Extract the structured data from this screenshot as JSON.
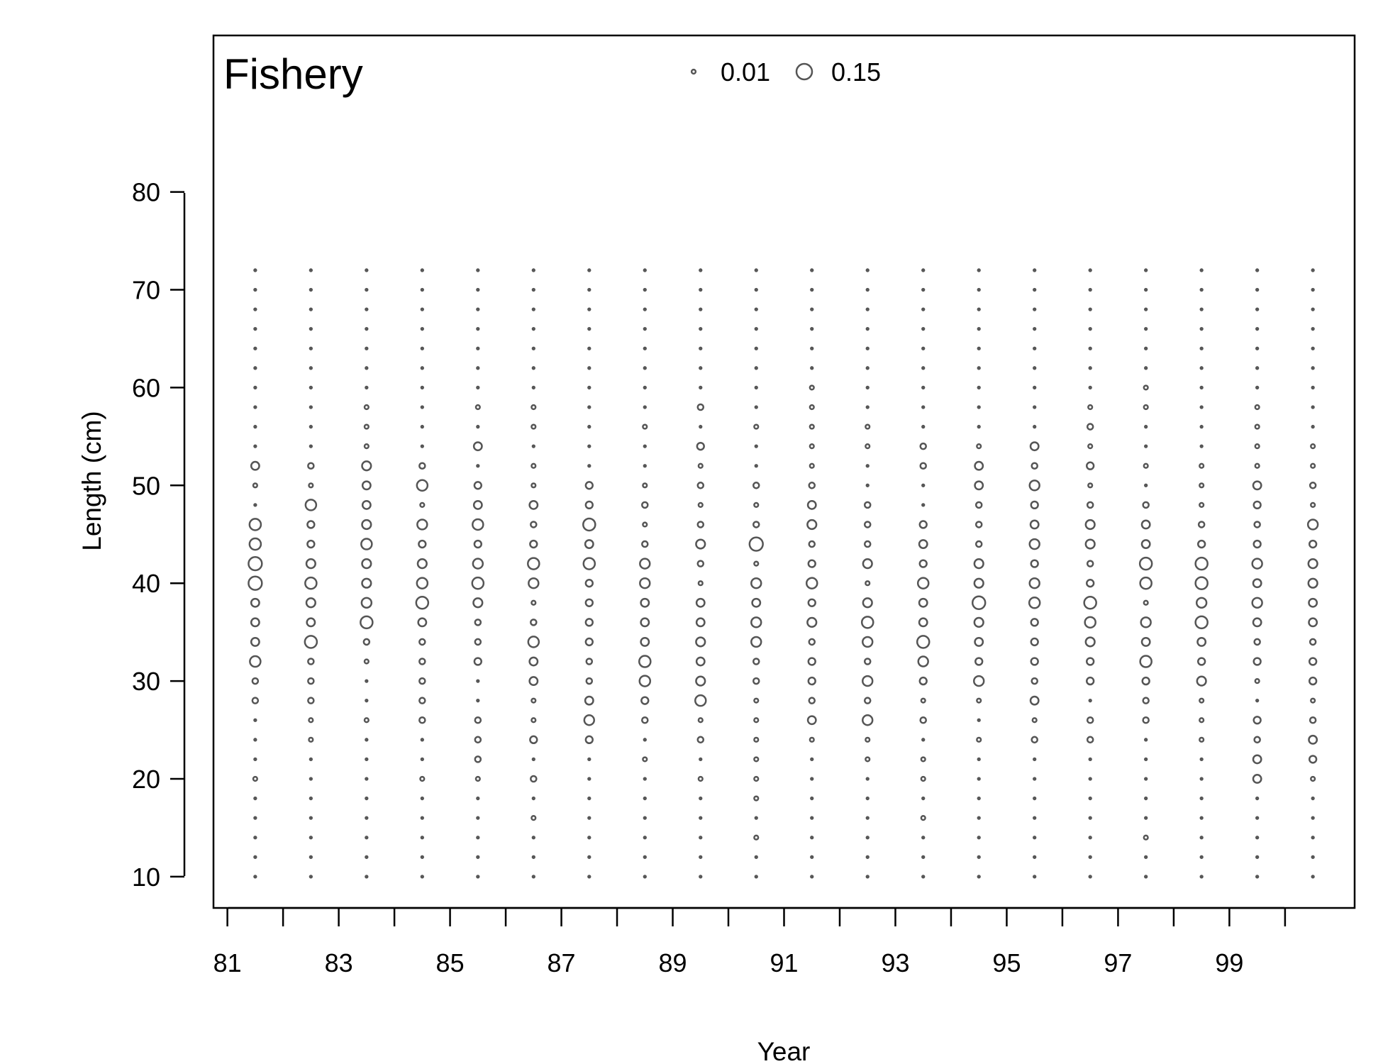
{
  "chart_data": {
    "type": "scatter",
    "subtype": "bubble",
    "title": "Fishery",
    "xlabel": "Year",
    "ylabel": "Length (cm)",
    "x_tick_labels": [
      "81",
      "83",
      "85",
      "87",
      "89",
      "91",
      "93",
      "95",
      "97",
      "99"
    ],
    "x_tick_values": [
      81,
      82,
      83,
      84,
      85,
      86,
      87,
      88,
      89,
      90,
      91,
      92,
      93,
      94,
      95,
      96,
      97,
      98,
      99,
      100
    ],
    "y_ticks": [
      10,
      20,
      30,
      40,
      50,
      60,
      70,
      80
    ],
    "xlim": [
      80.75,
      101.25
    ],
    "ylim": [
      6.8,
      96
    ],
    "grid": false,
    "legend": {
      "position": "top",
      "entries": [
        {
          "label": "0.01",
          "value": 0.01
        },
        {
          "label": "0.15",
          "value": 0.15
        }
      ]
    },
    "size_scale": "area proportional to proportion",
    "bubble_color": "#555555",
    "lengths": [
      10,
      12,
      14,
      16,
      18,
      20,
      22,
      24,
      26,
      28,
      30,
      32,
      34,
      36,
      38,
      40,
      42,
      44,
      46,
      48,
      50,
      52,
      54,
      56,
      58,
      60,
      62,
      64,
      66,
      68,
      70,
      72
    ],
    "note_values": "per-year proportions indexed by lengths array",
    "years": [
      {
        "year": 81.5,
        "values": [
          0,
          0,
          0,
          0,
          0,
          0.01,
          0,
          0,
          0,
          0.02,
          0.02,
          0.07,
          0.04,
          0.04,
          0.04,
          0.11,
          0.11,
          0.08,
          0.08,
          0,
          0.01,
          0.04,
          0,
          0,
          0,
          0,
          0,
          0,
          0,
          0,
          0,
          0
        ]
      },
      {
        "year": 82.5,
        "values": [
          0,
          0,
          0,
          0,
          0,
          0,
          0,
          0.01,
          0.01,
          0.02,
          0.02,
          0.02,
          0.09,
          0.04,
          0.05,
          0.08,
          0.05,
          0.03,
          0.03,
          0.07,
          0.01,
          0.02,
          0,
          0,
          0,
          0,
          0,
          0,
          0,
          0,
          0,
          0
        ]
      },
      {
        "year": 83.5,
        "values": [
          0,
          0,
          0,
          0,
          0,
          0,
          0,
          0,
          0.01,
          0,
          0,
          0.01,
          0.02,
          0.09,
          0.06,
          0.05,
          0.05,
          0.07,
          0.05,
          0.04,
          0.04,
          0.05,
          0.01,
          0.01,
          0.01,
          0,
          0,
          0,
          0,
          0,
          0,
          0
        ]
      },
      {
        "year": 84.5,
        "values": [
          0,
          0,
          0,
          0,
          0,
          0.01,
          0,
          0,
          0.02,
          0.02,
          0.02,
          0.02,
          0.02,
          0.04,
          0.09,
          0.07,
          0.05,
          0.03,
          0.06,
          0.01,
          0.07,
          0.02,
          0,
          0,
          0,
          0,
          0,
          0,
          0,
          0,
          0,
          0
        ]
      },
      {
        "year": 85.5,
        "values": [
          0,
          0,
          0,
          0,
          0,
          0.01,
          0.02,
          0.02,
          0.02,
          0,
          0,
          0.03,
          0.02,
          0.02,
          0.05,
          0.08,
          0.06,
          0.03,
          0.07,
          0.04,
          0.03,
          0,
          0.04,
          0,
          0.01,
          0,
          0,
          0,
          0,
          0,
          0,
          0
        ]
      },
      {
        "year": 86.5,
        "values": [
          0,
          0,
          0,
          0.01,
          0,
          0.02,
          0,
          0.03,
          0.01,
          0.01,
          0.04,
          0.04,
          0.07,
          0.02,
          0.01,
          0.06,
          0.08,
          0.03,
          0.02,
          0.04,
          0.01,
          0.01,
          0,
          0.01,
          0.01,
          0,
          0,
          0,
          0,
          0,
          0,
          0
        ]
      },
      {
        "year": 87.5,
        "values": [
          0,
          0,
          0,
          0,
          0,
          0,
          0,
          0.03,
          0.06,
          0.04,
          0.02,
          0.02,
          0.03,
          0.03,
          0.03,
          0.03,
          0.08,
          0.04,
          0.09,
          0.03,
          0.03,
          0,
          0,
          0,
          0,
          0,
          0,
          0,
          0,
          0,
          0,
          0
        ]
      },
      {
        "year": 88.5,
        "values": [
          0,
          0,
          0,
          0,
          0,
          0,
          0.01,
          0,
          0.02,
          0.03,
          0.07,
          0.08,
          0.04,
          0.04,
          0.04,
          0.06,
          0.06,
          0.02,
          0.01,
          0.02,
          0.01,
          0,
          0,
          0.01,
          0,
          0,
          0,
          0,
          0,
          0,
          0,
          0
        ]
      },
      {
        "year": 89.5,
        "values": [
          0,
          0,
          0,
          0,
          0,
          0.01,
          0,
          0.02,
          0.01,
          0.07,
          0.05,
          0.04,
          0.05,
          0.04,
          0.04,
          0.01,
          0.02,
          0.05,
          0.02,
          0.01,
          0.02,
          0.01,
          0.03,
          0,
          0.02,
          0,
          0,
          0,
          0,
          0,
          0,
          0
        ]
      },
      {
        "year": 90.5,
        "values": [
          0,
          0,
          0.01,
          0,
          0.01,
          0.01,
          0.01,
          0.01,
          0.01,
          0.01,
          0.02,
          0.02,
          0.06,
          0.06,
          0.04,
          0.06,
          0.01,
          0.11,
          0.02,
          0.01,
          0.02,
          0,
          0,
          0.01,
          0,
          0,
          0,
          0,
          0,
          0,
          0,
          0
        ]
      },
      {
        "year": 91.5,
        "values": [
          0,
          0,
          0,
          0,
          0,
          0,
          0,
          0.01,
          0.04,
          0.02,
          0.03,
          0.03,
          0.02,
          0.05,
          0.03,
          0.07,
          0.03,
          0.02,
          0.05,
          0.04,
          0.02,
          0.01,
          0.01,
          0.01,
          0.01,
          0.01,
          0,
          0,
          0,
          0,
          0,
          0
        ]
      },
      {
        "year": 92.5,
        "values": [
          0,
          0,
          0,
          0,
          0,
          0,
          0.01,
          0.01,
          0.06,
          0.02,
          0.06,
          0.02,
          0.06,
          0.08,
          0.05,
          0.01,
          0.05,
          0.02,
          0.02,
          0.02,
          0,
          0,
          0.01,
          0.01,
          0,
          0,
          0,
          0,
          0,
          0,
          0,
          0
        ]
      },
      {
        "year": 93.5,
        "values": [
          0,
          0,
          0,
          0.01,
          0,
          0.01,
          0.01,
          0,
          0.02,
          0.01,
          0.03,
          0.06,
          0.09,
          0.04,
          0.04,
          0.07,
          0.03,
          0.04,
          0.03,
          0,
          0,
          0.02,
          0.02,
          0,
          0,
          0,
          0,
          0,
          0,
          0,
          0,
          0
        ]
      },
      {
        "year": 94.5,
        "values": [
          0,
          0,
          0,
          0,
          0,
          0,
          0,
          0.01,
          0,
          0.01,
          0.06,
          0.03,
          0.04,
          0.05,
          0.1,
          0.05,
          0.05,
          0.02,
          0.02,
          0.02,
          0.04,
          0.04,
          0.01,
          0,
          0,
          0,
          0,
          0,
          0,
          0,
          0,
          0
        ]
      },
      {
        "year": 95.5,
        "values": [
          0,
          0,
          0,
          0,
          0,
          0,
          0,
          0.02,
          0.01,
          0.04,
          0.02,
          0.03,
          0.03,
          0.03,
          0.07,
          0.06,
          0.03,
          0.06,
          0.04,
          0.03,
          0.06,
          0.02,
          0.04,
          0,
          0,
          0,
          0,
          0,
          0,
          0,
          0,
          0
        ]
      },
      {
        "year": 96.5,
        "values": [
          0,
          0,
          0,
          0,
          0,
          0,
          0,
          0.02,
          0.02,
          0,
          0.03,
          0.03,
          0.05,
          0.07,
          0.09,
          0.03,
          0.02,
          0.05,
          0.05,
          0.02,
          0.01,
          0.03,
          0.01,
          0.02,
          0.01,
          0,
          0,
          0,
          0,
          0,
          0,
          0
        ]
      },
      {
        "year": 97.5,
        "values": [
          0,
          0,
          0.01,
          0,
          0,
          0,
          0,
          0,
          0.02,
          0.02,
          0.03,
          0.08,
          0.04,
          0.06,
          0.01,
          0.08,
          0.09,
          0.04,
          0.04,
          0.02,
          0,
          0.01,
          0,
          0,
          0.01,
          0.01,
          0,
          0,
          0,
          0,
          0,
          0
        ]
      },
      {
        "year": 98.5,
        "values": [
          0,
          0,
          0,
          0,
          0,
          0,
          0,
          0.01,
          0.01,
          0.01,
          0.05,
          0.03,
          0.04,
          0.09,
          0.06,
          0.09,
          0.09,
          0.03,
          0.02,
          0.01,
          0.01,
          0.01,
          0,
          0,
          0,
          0,
          0,
          0,
          0,
          0,
          0,
          0
        ]
      },
      {
        "year": 99.5,
        "values": [
          0,
          0,
          0,
          0,
          0,
          0.04,
          0.04,
          0.02,
          0.03,
          0,
          0.01,
          0.03,
          0.02,
          0.04,
          0.06,
          0.04,
          0.06,
          0.03,
          0.02,
          0.03,
          0.04,
          0.01,
          0.01,
          0.01,
          0.01,
          0,
          0,
          0,
          0,
          0,
          0,
          0
        ]
      },
      {
        "year": 100.5,
        "values": [
          0,
          0,
          0,
          0,
          0,
          0.01,
          0.03,
          0.04,
          0.02,
          0.01,
          0.03,
          0.03,
          0.02,
          0.04,
          0.04,
          0.05,
          0.05,
          0.03,
          0.06,
          0.01,
          0.02,
          0.01,
          0.01,
          0,
          0,
          0,
          0,
          0,
          0,
          0,
          0,
          0
        ]
      }
    ]
  }
}
